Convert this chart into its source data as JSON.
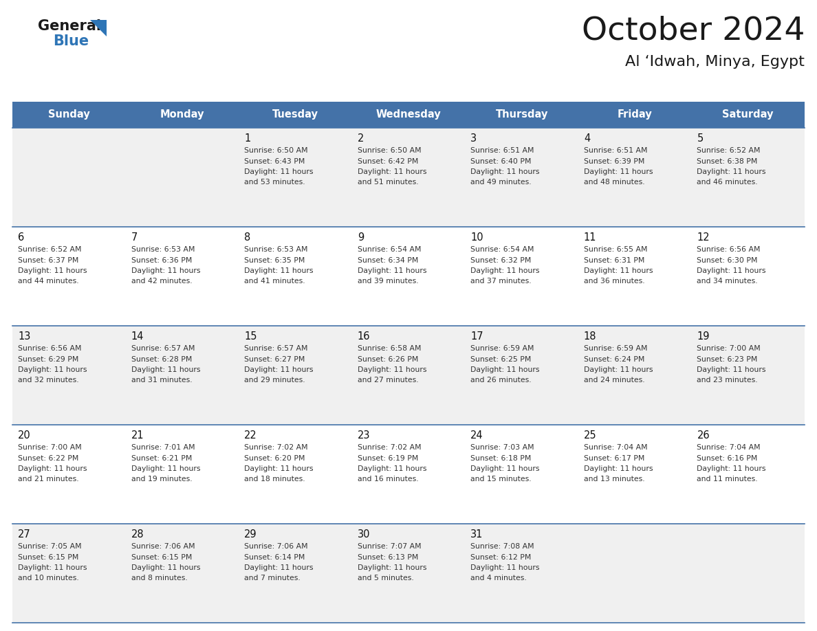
{
  "title": "October 2024",
  "subtitle": "Al ‘Idwah, Minya, Egypt",
  "days_of_week": [
    "Sunday",
    "Monday",
    "Tuesday",
    "Wednesday",
    "Thursday",
    "Friday",
    "Saturday"
  ],
  "header_bg": "#4472a8",
  "header_text": "#ffffff",
  "row_bg_odd": "#f0f0f0",
  "row_bg_even": "#ffffff",
  "cell_text_color": "#333333",
  "day_number_color": "#111111",
  "grid_line_color": "#4472a8",
  "calendar_data": [
    [
      null,
      null,
      {
        "day": 1,
        "sunrise": "6:50 AM",
        "sunset": "6:43 PM",
        "daylight": "11 hours and 53 minutes."
      },
      {
        "day": 2,
        "sunrise": "6:50 AM",
        "sunset": "6:42 PM",
        "daylight": "11 hours and 51 minutes."
      },
      {
        "day": 3,
        "sunrise": "6:51 AM",
        "sunset": "6:40 PM",
        "daylight": "11 hours and 49 minutes."
      },
      {
        "day": 4,
        "sunrise": "6:51 AM",
        "sunset": "6:39 PM",
        "daylight": "11 hours and 48 minutes."
      },
      {
        "day": 5,
        "sunrise": "6:52 AM",
        "sunset": "6:38 PM",
        "daylight": "11 hours and 46 minutes."
      }
    ],
    [
      {
        "day": 6,
        "sunrise": "6:52 AM",
        "sunset": "6:37 PM",
        "daylight": "11 hours and 44 minutes."
      },
      {
        "day": 7,
        "sunrise": "6:53 AM",
        "sunset": "6:36 PM",
        "daylight": "11 hours and 42 minutes."
      },
      {
        "day": 8,
        "sunrise": "6:53 AM",
        "sunset": "6:35 PM",
        "daylight": "11 hours and 41 minutes."
      },
      {
        "day": 9,
        "sunrise": "6:54 AM",
        "sunset": "6:34 PM",
        "daylight": "11 hours and 39 minutes."
      },
      {
        "day": 10,
        "sunrise": "6:54 AM",
        "sunset": "6:32 PM",
        "daylight": "11 hours and 37 minutes."
      },
      {
        "day": 11,
        "sunrise": "6:55 AM",
        "sunset": "6:31 PM",
        "daylight": "11 hours and 36 minutes."
      },
      {
        "day": 12,
        "sunrise": "6:56 AM",
        "sunset": "6:30 PM",
        "daylight": "11 hours and 34 minutes."
      }
    ],
    [
      {
        "day": 13,
        "sunrise": "6:56 AM",
        "sunset": "6:29 PM",
        "daylight": "11 hours and 32 minutes."
      },
      {
        "day": 14,
        "sunrise": "6:57 AM",
        "sunset": "6:28 PM",
        "daylight": "11 hours and 31 minutes."
      },
      {
        "day": 15,
        "sunrise": "6:57 AM",
        "sunset": "6:27 PM",
        "daylight": "11 hours and 29 minutes."
      },
      {
        "day": 16,
        "sunrise": "6:58 AM",
        "sunset": "6:26 PM",
        "daylight": "11 hours and 27 minutes."
      },
      {
        "day": 17,
        "sunrise": "6:59 AM",
        "sunset": "6:25 PM",
        "daylight": "11 hours and 26 minutes."
      },
      {
        "day": 18,
        "sunrise": "6:59 AM",
        "sunset": "6:24 PM",
        "daylight": "11 hours and 24 minutes."
      },
      {
        "day": 19,
        "sunrise": "7:00 AM",
        "sunset": "6:23 PM",
        "daylight": "11 hours and 23 minutes."
      }
    ],
    [
      {
        "day": 20,
        "sunrise": "7:00 AM",
        "sunset": "6:22 PM",
        "daylight": "11 hours and 21 minutes."
      },
      {
        "day": 21,
        "sunrise": "7:01 AM",
        "sunset": "6:21 PM",
        "daylight": "11 hours and 19 minutes."
      },
      {
        "day": 22,
        "sunrise": "7:02 AM",
        "sunset": "6:20 PM",
        "daylight": "11 hours and 18 minutes."
      },
      {
        "day": 23,
        "sunrise": "7:02 AM",
        "sunset": "6:19 PM",
        "daylight": "11 hours and 16 minutes."
      },
      {
        "day": 24,
        "sunrise": "7:03 AM",
        "sunset": "6:18 PM",
        "daylight": "11 hours and 15 minutes."
      },
      {
        "day": 25,
        "sunrise": "7:04 AM",
        "sunset": "6:17 PM",
        "daylight": "11 hours and 13 minutes."
      },
      {
        "day": 26,
        "sunrise": "7:04 AM",
        "sunset": "6:16 PM",
        "daylight": "11 hours and 11 minutes."
      }
    ],
    [
      {
        "day": 27,
        "sunrise": "7:05 AM",
        "sunset": "6:15 PM",
        "daylight": "11 hours and 10 minutes."
      },
      {
        "day": 28,
        "sunrise": "7:06 AM",
        "sunset": "6:15 PM",
        "daylight": "11 hours and 8 minutes."
      },
      {
        "day": 29,
        "sunrise": "7:06 AM",
        "sunset": "6:14 PM",
        "daylight": "11 hours and 7 minutes."
      },
      {
        "day": 30,
        "sunrise": "7:07 AM",
        "sunset": "6:13 PM",
        "daylight": "11 hours and 5 minutes."
      },
      {
        "day": 31,
        "sunrise": "7:08 AM",
        "sunset": "6:12 PM",
        "daylight": "11 hours and 4 minutes."
      },
      null,
      null
    ]
  ],
  "logo_text_general": "General",
  "logo_text_blue": "Blue",
  "logo_triangle_color": "#2e75b6",
  "logo_general_color": "#1a1a1a"
}
